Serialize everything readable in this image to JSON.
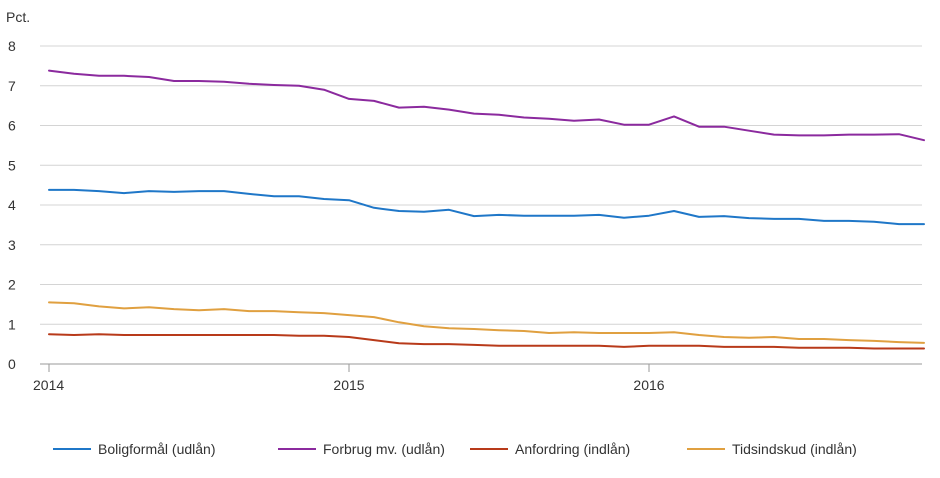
{
  "chart_data": {
    "type": "line",
    "title": "",
    "ylabel": "Pct.",
    "xlabel": "",
    "ylim": [
      0,
      8
    ],
    "yticks": [
      0,
      1,
      2,
      3,
      4,
      5,
      6,
      7,
      8
    ],
    "x_start": "2014-01",
    "n_points": 36,
    "x_ticks": [
      {
        "label": "2014",
        "index": 0
      },
      {
        "label": "2015",
        "index": 12
      },
      {
        "label": "2016",
        "index": 24
      }
    ],
    "legend_position": "bottom",
    "series": [
      {
        "name": "Boligformål (udlån)",
        "color": "#1f77c8",
        "values": [
          4.38,
          4.38,
          4.35,
          4.3,
          4.35,
          4.33,
          4.35,
          4.35,
          4.28,
          4.22,
          4.22,
          4.15,
          4.12,
          3.93,
          3.85,
          3.83,
          3.88,
          3.72,
          3.75,
          3.73,
          3.73,
          3.73,
          3.75,
          3.68,
          3.73,
          3.85,
          3.7,
          3.72,
          3.67,
          3.65,
          3.65,
          3.6,
          3.6,
          3.58,
          3.52,
          3.52
        ]
      },
      {
        "name": "Forbrug mv. (udlån)",
        "color": "#8b2a9e",
        "values": [
          7.38,
          7.3,
          7.25,
          7.25,
          7.22,
          7.12,
          7.12,
          7.1,
          7.05,
          7.02,
          7.0,
          6.9,
          6.67,
          6.62,
          6.45,
          6.47,
          6.4,
          6.3,
          6.27,
          6.2,
          6.17,
          6.12,
          6.15,
          6.02,
          6.02,
          6.23,
          5.97,
          5.97,
          5.87,
          5.77,
          5.75,
          5.75,
          5.77,
          5.77,
          5.78,
          5.63
        ]
      },
      {
        "name": "Anfordring (indlån)",
        "color": "#b83a1a",
        "values": [
          0.75,
          0.73,
          0.75,
          0.73,
          0.73,
          0.73,
          0.73,
          0.73,
          0.73,
          0.73,
          0.71,
          0.71,
          0.68,
          0.6,
          0.52,
          0.5,
          0.5,
          0.48,
          0.46,
          0.46,
          0.46,
          0.46,
          0.46,
          0.43,
          0.46,
          0.46,
          0.46,
          0.43,
          0.43,
          0.43,
          0.41,
          0.41,
          0.41,
          0.39,
          0.39,
          0.39
        ]
      },
      {
        "name": "Tidsindskud (indlån)",
        "color": "#e0a040",
        "values": [
          1.55,
          1.53,
          1.45,
          1.4,
          1.43,
          1.38,
          1.35,
          1.38,
          1.33,
          1.33,
          1.3,
          1.28,
          1.23,
          1.18,
          1.05,
          0.95,
          0.9,
          0.88,
          0.85,
          0.83,
          0.78,
          0.8,
          0.78,
          0.78,
          0.78,
          0.8,
          0.73,
          0.68,
          0.66,
          0.68,
          0.63,
          0.63,
          0.6,
          0.58,
          0.55,
          0.53
        ]
      }
    ]
  }
}
